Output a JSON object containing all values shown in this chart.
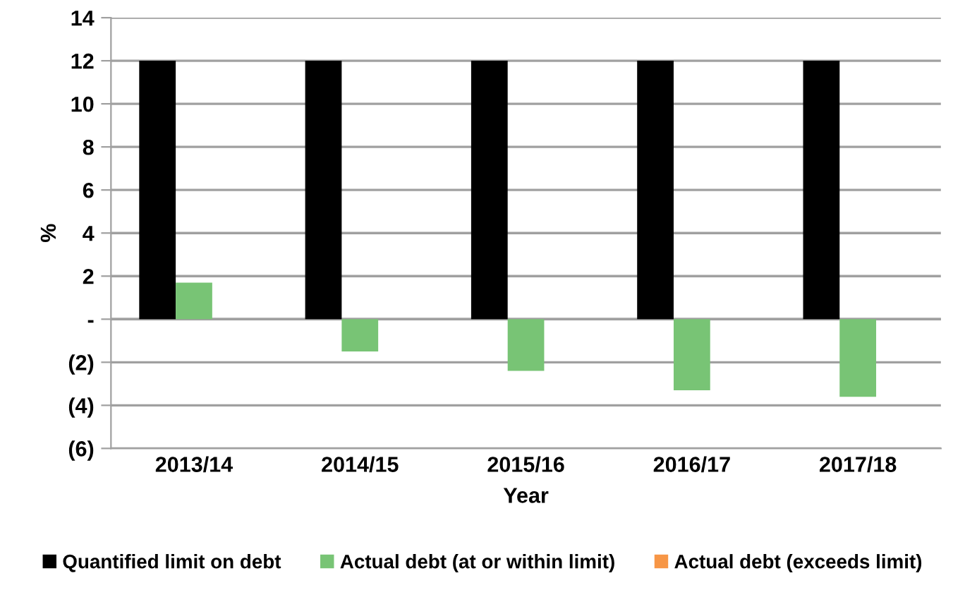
{
  "chart_data": {
    "type": "bar",
    "categories": [
      "2013/14",
      "2014/15",
      "2015/16",
      "2016/17",
      "2017/18"
    ],
    "series": [
      {
        "name": "Quantified limit on debt",
        "color": "#000000",
        "values": [
          12,
          12,
          12,
          12,
          12
        ]
      },
      {
        "name": "Actual debt (at or within limit)",
        "color": "#78c475",
        "values": [
          1.7,
          -1.5,
          -2.4,
          -3.3,
          -3.6
        ]
      },
      {
        "name": "Actual debt (exceeds limit)",
        "color": "#f79646",
        "values": [
          null,
          null,
          null,
          null,
          null
        ]
      }
    ],
    "xlabel": "Year",
    "ylabel": "%",
    "ylim": [
      -6,
      14
    ],
    "yticks": [
      {
        "value": -6,
        "label": "(6)"
      },
      {
        "value": -4,
        "label": "(4)"
      },
      {
        "value": -2,
        "label": "(2)"
      },
      {
        "value": 0,
        "label": "-"
      },
      2,
      4,
      6,
      8,
      10,
      12,
      14
    ],
    "grid": "y",
    "legend": "bottom"
  }
}
